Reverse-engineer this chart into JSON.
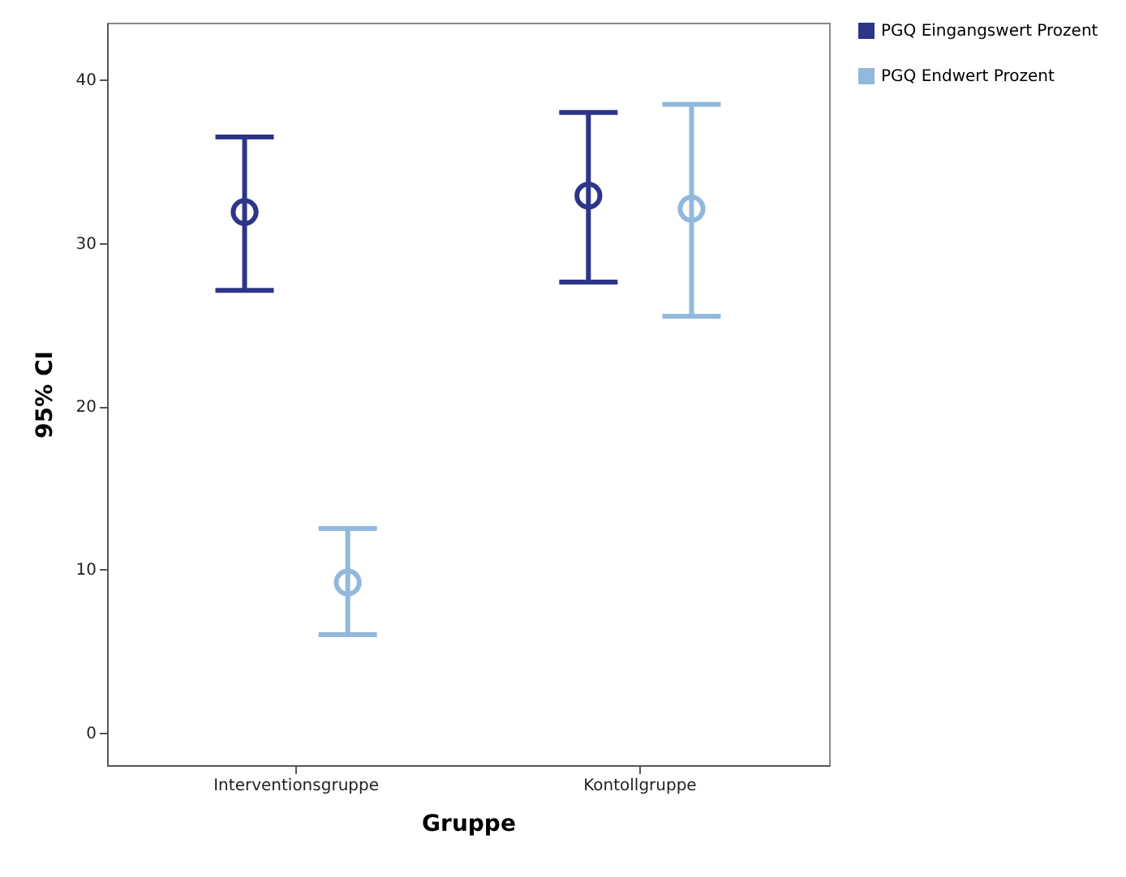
{
  "chart_data": {
    "type": "scatter",
    "xlabel": "Gruppe",
    "ylabel": "95% CI",
    "categories": [
      "Interventionsgruppe",
      "Kontollgruppe"
    ],
    "series": [
      {
        "name": "PGQ Eingangswert Prozent",
        "color": "#2e3589",
        "values": [
          31.9,
          32.9
        ],
        "errors": [
          [
            27.1,
            36.5
          ],
          [
            27.6,
            38.0
          ]
        ]
      },
      {
        "name": "PGQ Endwert Prozent",
        "color": "#92b8dd",
        "values": [
          9.2,
          32.1
        ],
        "errors": [
          [
            6.0,
            12.5
          ],
          [
            25.5,
            38.5
          ]
        ]
      }
    ],
    "ylim": [
      -2,
      43.5
    ],
    "yticks": [
      0,
      10,
      20,
      30,
      40
    ],
    "marker": "circle",
    "legend": "top right",
    "grid": false
  }
}
